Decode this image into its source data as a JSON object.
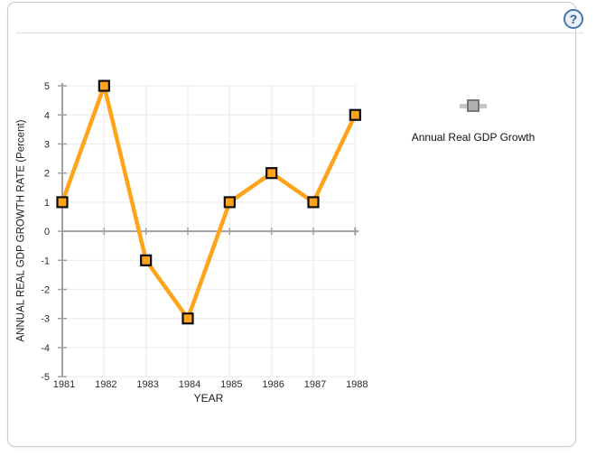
{
  "header": {
    "help_label": "?"
  },
  "legend": {
    "label": "Annual Real GDP Growth"
  },
  "chart_data": {
    "type": "line",
    "categories": [
      "1981",
      "1982",
      "1983",
      "1984",
      "1985",
      "1986",
      "1987",
      "1988"
    ],
    "series": [
      {
        "name": "Annual Real GDP Growth",
        "values": [
          1,
          5,
          -1,
          -3,
          1,
          2,
          1,
          4
        ]
      }
    ],
    "title": "",
    "xlabel": "YEAR",
    "ylabel": "ANNUAL REAL GDP GROWTH RATE (Percent)",
    "ylim": [
      -5,
      5
    ],
    "ytick_step": 1,
    "grid": true,
    "legend_position": "right",
    "line_color": "#FFA31A",
    "marker": "square",
    "marker_fill": "#FFA31A",
    "marker_border_color": "#0d0d0d",
    "axis_color": "#a0a0a0",
    "grid_color": "#ededed",
    "tick_label_color": "#2b2b2b"
  }
}
